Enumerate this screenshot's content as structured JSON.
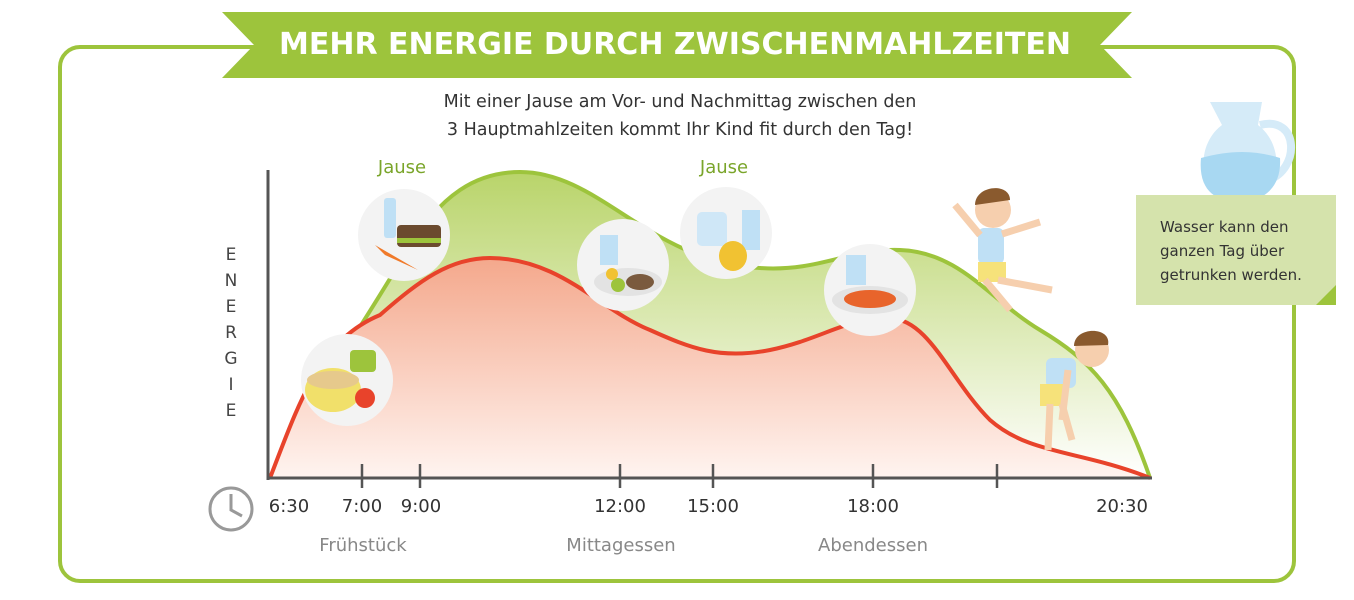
{
  "header": {
    "title": "MEHR ENERGIE DURCH ZWISCHENMAHLZEITEN",
    "subtitle_line1": "Mit einer Jause am Vor- und Nachmittag zwischen den",
    "subtitle_line2": "3 Hauptmahlzeiten kommt Ihr Kind fit durch den Tag!"
  },
  "axis": {
    "ylabel": "ENERGIE",
    "ticks": [
      "6:30",
      "7:00",
      "9:00",
      "12:00",
      "15:00",
      "18:00",
      "20:30"
    ],
    "meals": [
      "Frühstück",
      "Mittagessen",
      "Abendessen"
    ],
    "snack_label": "Jause",
    "clock_icon": "clock-icon"
  },
  "note": {
    "text_line1": "Wasser kann den",
    "text_line2": "ganzen Tag über",
    "text_line3": "getrunken werden."
  },
  "colors": {
    "brand_green": "#9dc43c",
    "with_snacks_curve": "#9dc43c",
    "without_snacks_curve": "#e8432b",
    "note_bg": "#d5e3ac"
  }
}
